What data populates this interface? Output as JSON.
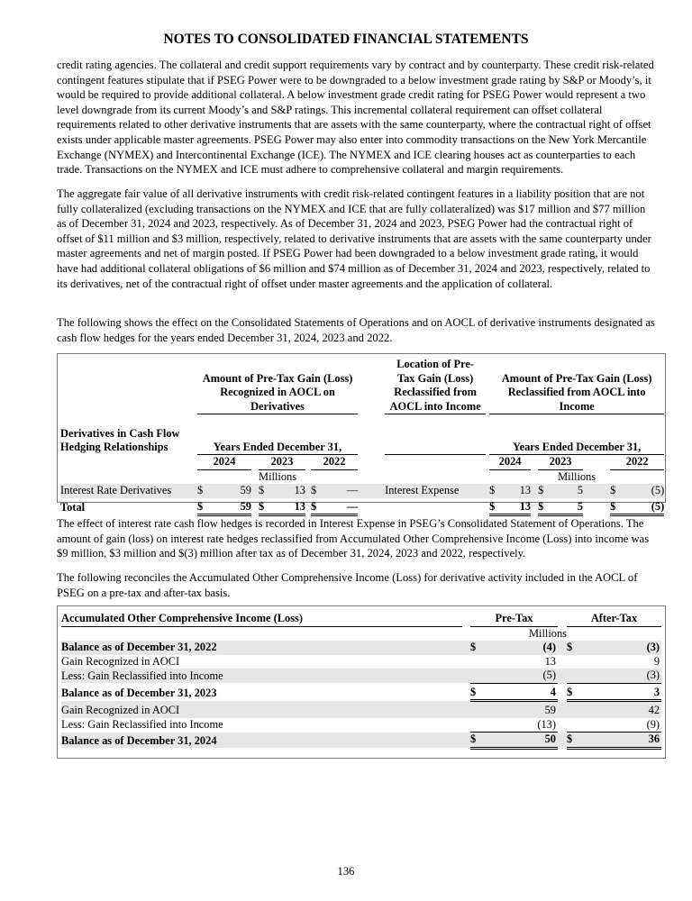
{
  "header": {
    "title": "NOTES TO CONSOLIDATED FINANCIAL STATEMENTS"
  },
  "paragraphs": [
    [
      "credit rating agencies. The collateral and credit support requirements vary by contract and by counterparty. These credit risk-related",
      "contingent features stipulate that if PSEG Power were to be downgraded to a below investment grade rating by S&P or Moody’s, it",
      "would be required to provide additional collateral. A below investment grade credit rating for PSEG Power would represent a two",
      "level downgrade from its current Moody’s and S&P ratings. This incremental collateral requirement can offset collateral",
      "requirements related to other derivative instruments that are assets with the same counterparty, where the contractual right of offset",
      "exists under applicable master agreements. PSEG Power may also enter into commodity transactions on the New York Mercantile",
      "Exchange (NYMEX) and Intercontinental Exchange (ICE). The NYMEX and ICE clearing houses act as counterparties to each",
      "trade. Transactions on the NYMEX and ICE must adhere to comprehensive collateral and margin requirements."
    ],
    [
      "The aggregate fair value of all derivative instruments with credit risk-related contingent features in a liability position that are not",
      "fully collateralized (excluding transactions on the NYMEX and ICE that are fully collateralized) was $17 million and $77 million",
      "as of December 31, 2024 and 2023, respectively. As of December 31, 2024 and 2023, PSEG Power had the contractual right of",
      "offset of $11 million and $3 million, respectively, related to derivative instruments that are assets with the same counterparty under",
      "master agreements and net of margin posted. If PSEG Power had been downgraded to a below investment grade rating, it would",
      "have had additional collateral obligations of $6 million and $74 million as of December 31, 2024 and 2023, respectively, related to",
      "its derivatives, net of the contractual right of offset under master agreements and the application of collateral."
    ],
    [
      "The following shows the effect on the Consolidated Statements of Operations and on AOCL of derivative instruments designated as",
      "cash flow hedges for the years ended December 31, 2024, 2023 and 2022."
    ],
    [
      "The effect of interest rate cash flow hedges is recorded in Interest Expense in PSEG’s Consolidated Statement of Operations. The",
      "amount of gain (loss) on interest rate hedges reclassified from Accumulated Other Comprehensive Income (Loss) into income was",
      "$9 million, $3 million and $(3) million after tax as of December 31, 2024, 2023 and 2022, respectively."
    ],
    [
      "The following reconciles the Accumulated Other Comprehensive Income (Loss) for derivative activity included in the AOCL of",
      "PSEG on a pre-tax and after-tax basis."
    ]
  ],
  "table1": {
    "group1_header": [
      "Amount of Pre-Tax Gain (Loss)",
      "Recognized in AOCL on",
      "Derivatives"
    ],
    "location_header": [
      "Location of Pre-",
      "Tax Gain (Loss)",
      "Reclassified from",
      "AOCL into Income"
    ],
    "group2_header": [
      "Amount of Pre-Tax Gain (Loss)",
      "Reclassified from AOCL into",
      "Income"
    ],
    "row_header": [
      "Derivatives in Cash Flow",
      "Hedging Relationships"
    ],
    "years_ended": "Years Ended December 31,",
    "years": [
      "2024",
      "2023",
      "2022"
    ],
    "units": "Millions",
    "currency": "$",
    "rows": [
      {
        "label": "Interest Rate Derivatives",
        "recognized": [
          "59",
          "13",
          "—"
        ],
        "location": "Interest Expense",
        "reclassified": [
          "13",
          "5",
          "(5)"
        ]
      },
      {
        "label": "Total",
        "recognized": [
          "59",
          "13",
          "—"
        ],
        "location": "",
        "reclassified": [
          "13",
          "5",
          "(5)"
        ]
      }
    ]
  },
  "table2": {
    "header": "Accumulated Other Comprehensive Income (Loss)",
    "pretax": "Pre-Tax",
    "aftertax": "After-Tax",
    "units": "Millions",
    "currency": "$",
    "rows": [
      {
        "label": "Balance as of December 31, 2022",
        "pre": "(4)",
        "after": "(3)"
      },
      {
        "label": "Gain Recognized in AOCI",
        "pre": "13",
        "after": "9"
      },
      {
        "label": "Less: Gain Reclassified into Income",
        "pre": "(5)",
        "after": "(3)"
      },
      {
        "label": "Balance as of December 31, 2023",
        "pre": "4",
        "after": "3"
      },
      {
        "label": "Gain Recognized in AOCI",
        "pre": "59",
        "after": "42"
      },
      {
        "label": "Less: Gain Reclassified into Income",
        "pre": "(13)",
        "after": "(9)"
      },
      {
        "label": "Balance as of December 31, 2024",
        "pre": "50",
        "after": "36"
      }
    ]
  },
  "footer": {
    "page_number": "136"
  },
  "colors": {
    "row_shading": "#e6e6e6"
  }
}
